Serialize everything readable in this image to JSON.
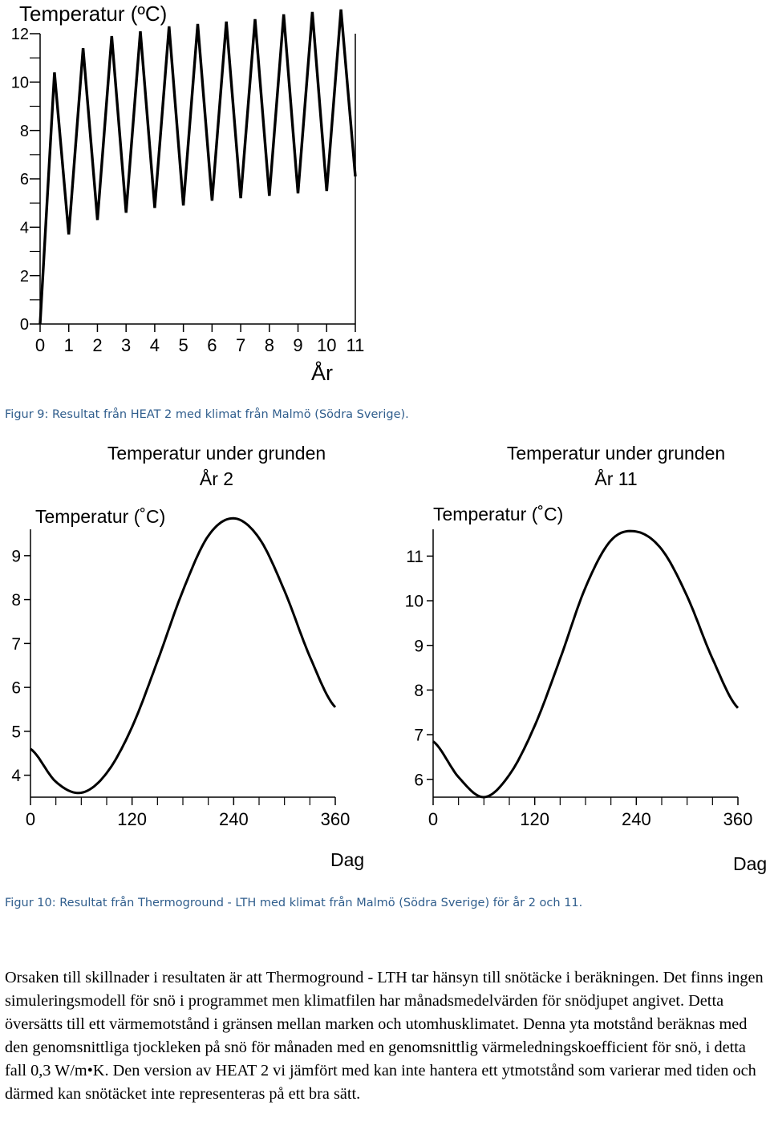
{
  "chart_data": [
    {
      "type": "line",
      "title": "Temperatur (ºC)",
      "xlabel": "År",
      "ylabel": "",
      "xlim": [
        0,
        11
      ],
      "ylim": [
        0,
        12
      ],
      "xticks": [
        0,
        1,
        2,
        3,
        4,
        5,
        6,
        7,
        8,
        9,
        10,
        11
      ],
      "yticks": [
        0,
        2,
        4,
        6,
        8,
        10,
        12
      ],
      "grid": false,
      "series": [
        {
          "x": [
            0,
            0.5,
            1,
            1.5,
            2,
            2.5,
            3,
            3.5,
            4,
            4.5,
            5,
            5.5,
            6,
            6.5,
            7,
            7.5,
            8,
            8.5,
            9,
            9.5,
            10,
            10.5,
            11
          ],
          "values": [
            0,
            10.4,
            3.7,
            11.4,
            4.3,
            11.9,
            4.6,
            12.1,
            4.8,
            12.3,
            4.9,
            12.4,
            5.1,
            12.5,
            5.2,
            12.6,
            5.3,
            12.8,
            5.4,
            12.9,
            5.5,
            13.0,
            6.1
          ]
        }
      ]
    },
    {
      "type": "line",
      "title": "Temperatur under grunden",
      "subtitle": "År 2",
      "ylabel": "Temperatur (˚C)",
      "xlabel": "Dag",
      "xlim": [
        0,
        360
      ],
      "ylim": [
        3.5,
        9.6
      ],
      "xticks": [
        0,
        120,
        240,
        360
      ],
      "yticks": [
        4,
        5,
        6,
        7,
        8,
        9
      ],
      "grid": false,
      "series": [
        {
          "x": [
            0,
            30,
            60,
            90,
            120,
            150,
            180,
            210,
            240,
            270,
            300,
            330,
            360
          ],
          "values": [
            4.6,
            3.85,
            3.6,
            4.05,
            5.1,
            6.6,
            8.2,
            9.45,
            9.85,
            9.4,
            8.2,
            6.7,
            5.55
          ]
        }
      ]
    },
    {
      "type": "line",
      "title": "Temperatur under grunden",
      "subtitle": "År 11",
      "ylabel": "Temperatur (˚C)",
      "xlabel": "Dag",
      "xlim": [
        0,
        360
      ],
      "ylim": [
        5.6,
        11.6
      ],
      "xticks": [
        0,
        120,
        240,
        360
      ],
      "yticks": [
        6,
        7,
        8,
        9,
        10,
        11
      ],
      "grid": false,
      "series": [
        {
          "x": [
            0,
            30,
            60,
            90,
            120,
            150,
            180,
            210,
            240,
            270,
            300,
            330,
            360
          ],
          "values": [
            6.85,
            6.05,
            5.6,
            6.1,
            7.2,
            8.7,
            10.3,
            11.35,
            11.55,
            11.15,
            10.1,
            8.7,
            7.6
          ]
        }
      ]
    }
  ],
  "captions": {
    "fig9": "Figur 9: Resultat från HEAT 2 med klimat från Malmö (Södra Sverige).",
    "fig10": "Figur 10: Resultat från Thermoground - LTH med klimat från Malmö (Södra Sverige) för år 2 och 11."
  },
  "body_text": "Orsaken till skillnader i resultaten är att Thermoground - LTH tar hänsyn till snötäcke i beräkningen. Det finns ingen simuleringsmodell för snö i programmet men klimatfilen har månadsmedelvärden för snödjupet angivet. Detta översätts till ett värmemotstånd i gränsen mellan marken och utomhusklimatet. Denna yta motstånd beräknas med den genomsnittliga tjockleken på snö för månaden med en genomsnittlig värmeledningskoefficient för snö, i detta fall 0,3 W/m•K. Den version av HEAT 2 vi jämfört med kan inte hantera ett ytmotstånd som varierar med tiden och därmed kan snötäcket inte representeras på ett bra sätt."
}
